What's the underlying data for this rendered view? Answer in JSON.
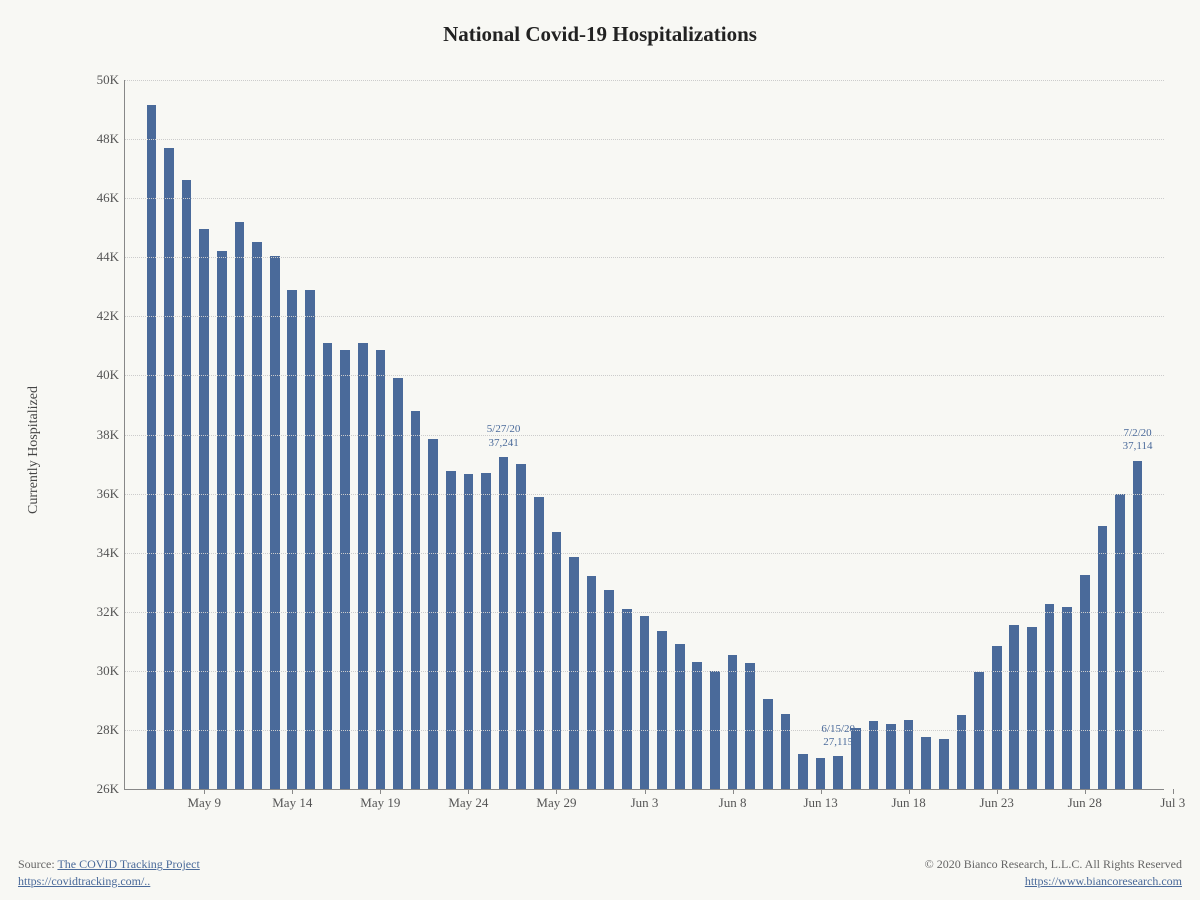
{
  "chart": {
    "title": "National Covid-19 Hospitalizations",
    "title_fontsize": 21,
    "background_color": "#f8f8f4",
    "bar_color": "#4a6a9a",
    "grid_color": "#cccccc",
    "axis_color": "#888888",
    "text_color": "#555555",
    "annotation_color": "#4a6a9a",
    "font_family": "Georgia, serif",
    "tick_fontsize": 13,
    "y_axis_title": "Currently Hospitalized",
    "y_axis_title_fontsize": 14,
    "ylim": [
      26000,
      50000
    ],
    "ytick_step": 2000,
    "ytick_labels": [
      "26K",
      "28K",
      "30K",
      "32K",
      "34K",
      "36K",
      "38K",
      "40K",
      "42K",
      "44K",
      "46K",
      "48K",
      "50K"
    ],
    "bar_width_ratio": 0.55,
    "x_start_date": "2020-05-06",
    "x_tick_labels": [
      "May 9",
      "May 14",
      "May 19",
      "May 24",
      "May 29",
      "Jun 3",
      "Jun 8",
      "Jun 13",
      "Jun 18",
      "Jun 23",
      "Jun 28",
      "Jul 3"
    ],
    "x_tick_indices": [
      3,
      8,
      13,
      18,
      23,
      28,
      33,
      38,
      43,
      48,
      53,
      58
    ],
    "values": [
      49150,
      47700,
      46600,
      44950,
      44200,
      45200,
      44500,
      44050,
      42900,
      42900,
      41100,
      40850,
      41100,
      40850,
      39900,
      38800,
      37850,
      36750,
      36650,
      36700,
      37241,
      37000,
      35900,
      34700,
      33850,
      33200,
      32750,
      32100,
      31850,
      31350,
      30900,
      30300,
      30000,
      30550,
      30250,
      29050,
      28550,
      27200,
      27050,
      27115,
      28050,
      28300,
      28200,
      28350,
      27750,
      27700,
      28500,
      29950,
      30850,
      31550,
      31500,
      32250,
      32150,
      33250,
      34900,
      36000,
      37114
    ],
    "annotations": [
      {
        "index": 20,
        "date": "5/27/20",
        "value_label": "37,241"
      },
      {
        "index": 39,
        "date": "6/15/20",
        "value_label": "27,115"
      },
      {
        "index": 56,
        "date": "7/2/20",
        "value_label": "37,114"
      }
    ]
  },
  "footer": {
    "source_prefix": "Source: ",
    "source_name": "The COVID Tracking Project",
    "source_url_text": "https://covidtracking.com/..",
    "copyright": "© 2020 Bianco Research, L.L.C. All Rights Reserved",
    "copyright_url_text": "https://www.biancoresearch.com"
  }
}
